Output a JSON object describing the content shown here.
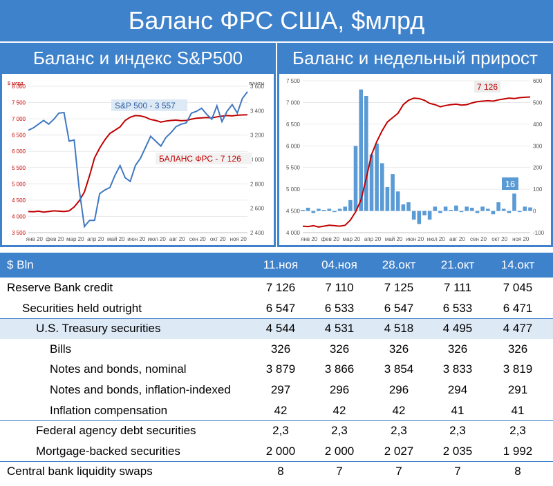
{
  "title": "Баланс ФРС США, $млрд",
  "subtitles": {
    "left": "Баланс и индекс S&P500",
    "right": "Баланс и недельный прирост"
  },
  "colors": {
    "header_bg": "#3f82cc",
    "balance_line": "#c00000",
    "sp_line": "#3f77c0",
    "bars": "#5b9bd5",
    "highlight_row": "#dde9f5"
  },
  "chart_data": [
    {
      "type": "line",
      "x_tick_labels": [
        "янв 20",
        "фев 20",
        "мар 20",
        "апр 20",
        "май 20",
        "июн 20",
        "июл 20",
        "авг 20",
        "сен 20",
        "окт 20",
        "ноя 20"
      ],
      "left_axis": {
        "unit": "$ млрд",
        "ylim": [
          3500,
          8000
        ],
        "ticks": [
          "3 500",
          "4 000",
          "4 500",
          "5 000",
          "5 500",
          "6 000",
          "6 500",
          "7 000",
          "7 500",
          "8 000"
        ],
        "tick_values": [
          3500,
          4000,
          4500,
          5000,
          5500,
          6000,
          6500,
          7000,
          7500,
          8000
        ]
      },
      "right_axis": {
        "unit": "пункты",
        "ylim": [
          2400,
          3600
        ],
        "ticks": [
          "2 400",
          "2 600",
          "2 800",
          "3 000",
          "3 200",
          "3 400",
          "3 600"
        ],
        "tick_values": [
          2400,
          2600,
          2800,
          3000,
          3200,
          3400,
          3600
        ]
      },
      "series": [
        {
          "name": "S&P 500",
          "label": "S&P 500 - 3 557",
          "axis": "right",
          "x": [
            0,
            0.25,
            0.5,
            0.75,
            1.0,
            1.25,
            1.5,
            1.75,
            2.0,
            2.25,
            2.5,
            2.75,
            3.0,
            3.25,
            3.5,
            3.75,
            4.0,
            4.25,
            4.5,
            4.75,
            5.0,
            5.25,
            5.5,
            5.75,
            6.0,
            6.25,
            6.5,
            6.75,
            7.0,
            7.25,
            7.5,
            7.75,
            8.0,
            8.25,
            8.5,
            8.75,
            9.0,
            9.25,
            9.5,
            9.75,
            10.0,
            10.25,
            10.5,
            10.75
          ],
          "values": [
            3240,
            3260,
            3290,
            3320,
            3290,
            3330,
            3380,
            3385,
            3150,
            3160,
            2750,
            2450,
            2500,
            2500,
            2720,
            2750,
            2770,
            2870,
            2950,
            2850,
            2820,
            2950,
            3010,
            3100,
            3190,
            3150,
            3110,
            3180,
            3220,
            3270,
            3290,
            3300,
            3380,
            3395,
            3420,
            3370,
            3330,
            3440,
            3310,
            3395,
            3450,
            3380,
            3500,
            3555
          ]
        },
        {
          "name": "БАЛАНС ФРС",
          "label": "БАЛАНС ФРС - 7 126",
          "axis": "left",
          "x": [
            0,
            0.25,
            0.5,
            0.75,
            1.0,
            1.25,
            1.5,
            1.75,
            2.0,
            2.25,
            2.5,
            2.75,
            3.0,
            3.25,
            3.5,
            3.75,
            4.0,
            4.25,
            4.5,
            4.75,
            5.0,
            5.25,
            5.5,
            5.75,
            6.0,
            6.25,
            6.5,
            6.75,
            7.0,
            7.25,
            7.5,
            7.75,
            8.0,
            8.25,
            8.5,
            8.75,
            9.0,
            9.25,
            9.5,
            9.75,
            10.0,
            10.25,
            10.5,
            10.75
          ],
          "values": [
            4150,
            4140,
            4160,
            4130,
            4150,
            4170,
            4160,
            4150,
            4170,
            4290,
            4480,
            4750,
            5250,
            5800,
            6100,
            6350,
            6550,
            6650,
            6750,
            6950,
            7050,
            7100,
            7090,
            7050,
            6980,
            6950,
            6900,
            6930,
            6950,
            6960,
            6940,
            6950,
            6990,
            7020,
            7030,
            7040,
            7030,
            7060,
            7080,
            7100,
            7090,
            7110,
            7120,
            7126
          ]
        }
      ]
    },
    {
      "type": "bar",
      "x_tick_labels": [
        "янв 20",
        "фев 20",
        "мар 20",
        "апр 20",
        "май 20",
        "июн 20",
        "июл 20",
        "авг 20",
        "сен 20",
        "окт 20",
        "ноя 20"
      ],
      "left_axis": {
        "ylim": [
          4000,
          7500
        ],
        "ticks": [
          "4 000",
          "4 500",
          "5 000",
          "5 500",
          "6 000",
          "6 500",
          "7 000",
          "7 500"
        ],
        "tick_values": [
          4000,
          4500,
          5000,
          5500,
          6000,
          6500,
          7000,
          7500
        ]
      },
      "right_axis": {
        "ylim": [
          -100,
          600
        ],
        "ticks": [
          "-100",
          "0",
          "100",
          "200",
          "300",
          "400",
          "500",
          "600"
        ],
        "tick_values": [
          -100,
          0,
          100,
          200,
          300,
          400,
          500,
          600
        ]
      },
      "series": [
        {
          "name": "Баланс",
          "label": "7 126",
          "axis": "left",
          "type": "line",
          "x": [
            0,
            0.25,
            0.5,
            0.75,
            1.0,
            1.25,
            1.5,
            1.75,
            2.0,
            2.25,
            2.5,
            2.75,
            3.0,
            3.25,
            3.5,
            3.75,
            4.0,
            4.25,
            4.5,
            4.75,
            5.0,
            5.25,
            5.5,
            5.75,
            6.0,
            6.25,
            6.5,
            6.75,
            7.0,
            7.25,
            7.5,
            7.75,
            8.0,
            8.25,
            8.5,
            8.75,
            9.0,
            9.25,
            9.5,
            9.75,
            10.0,
            10.25,
            10.5,
            10.75
          ],
          "values": [
            4150,
            4140,
            4160,
            4130,
            4150,
            4170,
            4160,
            4150,
            4170,
            4290,
            4480,
            4750,
            5250,
            5800,
            6100,
            6350,
            6550,
            6650,
            6750,
            6950,
            7050,
            7100,
            7090,
            7050,
            6980,
            6950,
            6900,
            6930,
            6950,
            6960,
            6940,
            6950,
            6990,
            7020,
            7030,
            7040,
            7030,
            7060,
            7080,
            7100,
            7090,
            7110,
            7120,
            7126
          ]
        },
        {
          "name": "Недельный прирост",
          "label": "16",
          "axis": "right",
          "type": "bar",
          "x": [
            0,
            0.25,
            0.5,
            0.75,
            1.0,
            1.25,
            1.5,
            1.75,
            2.0,
            2.25,
            2.5,
            2.75,
            3.0,
            3.25,
            3.5,
            3.75,
            4.0,
            4.25,
            4.5,
            4.75,
            5.0,
            5.25,
            5.5,
            5.75,
            6.0,
            6.25,
            6.5,
            6.75,
            7.0,
            7.25,
            7.5,
            7.75,
            8.0,
            8.25,
            8.5,
            8.75,
            9.0,
            9.25,
            9.5,
            9.75,
            10.0,
            10.25,
            10.5,
            10.75
          ],
          "values": [
            5,
            15,
            -10,
            10,
            5,
            10,
            -5,
            10,
            20,
            50,
            300,
            560,
            530,
            260,
            310,
            220,
            110,
            170,
            90,
            30,
            40,
            -40,
            -60,
            -20,
            -40,
            20,
            -10,
            20,
            5,
            25,
            -5,
            20,
            15,
            -10,
            20,
            10,
            -15,
            40,
            10,
            -10,
            80,
            -5,
            20,
            16
          ]
        }
      ]
    }
  ],
  "table": {
    "header_label": "$ Bln",
    "columns": [
      "11.ноя",
      "04.ноя",
      "28.окт",
      "21.окт",
      "14.окт"
    ],
    "rows": [
      {
        "label": "Reserve Bank credit",
        "values": [
          "7 126",
          "7 110",
          "7 125",
          "7 111",
          "7 045"
        ]
      },
      {
        "label": "Securities held outright",
        "values": [
          "6 547",
          "6 533",
          "6 547",
          "6 533",
          "6 471"
        ]
      },
      {
        "label": "U.S. Treasury securities",
        "values": [
          "4 544",
          "4 531",
          "4 518",
          "4 495",
          "4 477"
        ]
      },
      {
        "label": "Bills",
        "values": [
          "326",
          "326",
          "326",
          "326",
          "326"
        ]
      },
      {
        "label": "Notes and bonds, nominal",
        "values": [
          "3 879",
          "3 866",
          "3 854",
          "3 833",
          "3 819"
        ]
      },
      {
        "label": "Notes and bonds, inflation-indexed",
        "values": [
          "297",
          "296",
          "296",
          "294",
          "291"
        ]
      },
      {
        "label": "Inflation compensation",
        "values": [
          "42",
          "42",
          "42",
          "41",
          "41"
        ]
      },
      {
        "label": "Federal agency debt securities",
        "values": [
          "2,3",
          "2,3",
          "2,3",
          "2,3",
          "2,3"
        ]
      },
      {
        "label": "Mortgage-backed securities",
        "values": [
          "2 000",
          "2 000",
          "2 027",
          "2 035",
          "1 992"
        ]
      },
      {
        "label": "Central bank liquidity swaps",
        "values": [
          "8",
          "7",
          "7",
          "7",
          "8"
        ]
      }
    ]
  }
}
